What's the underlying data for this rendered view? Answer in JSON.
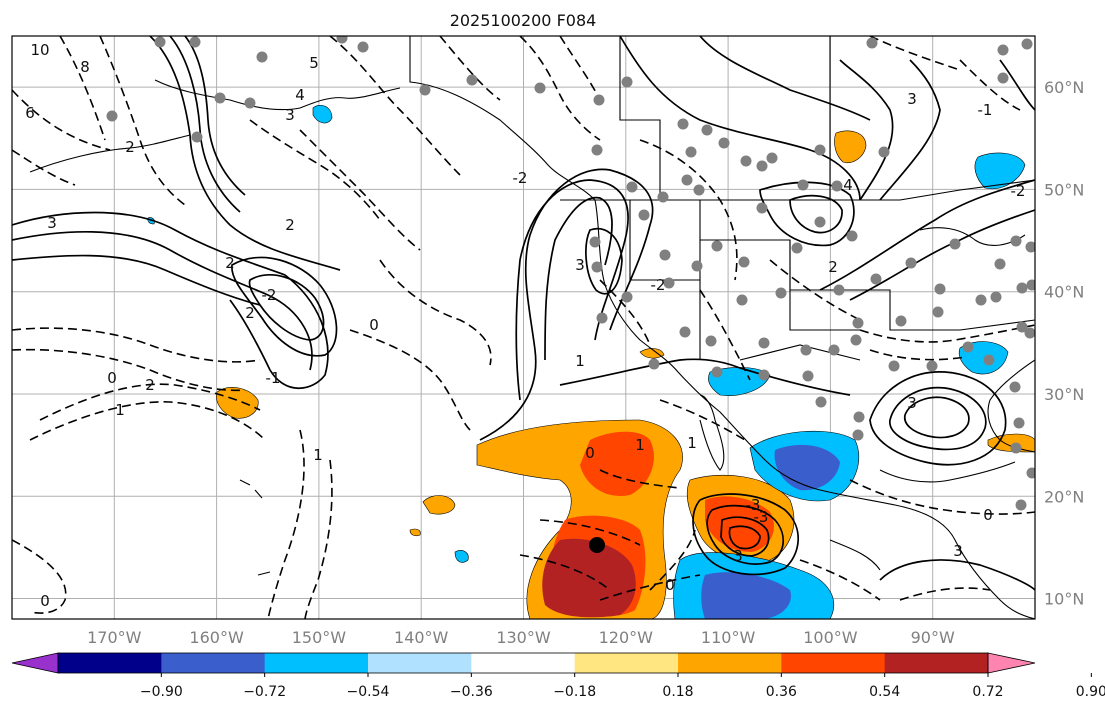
{
  "chart_data": {
    "type": "map",
    "title": "2025100200 F084",
    "lon_ticks": [
      "170°W",
      "160°W",
      "150°W",
      "140°W",
      "130°W",
      "120°W",
      "110°W",
      "100°W",
      "90°W"
    ],
    "lat_ticks": [
      "60°N",
      "50°N",
      "40°N",
      "30°N",
      "20°N",
      "10°N"
    ],
    "lon_range": [
      -180,
      -80
    ],
    "lat_range": [
      8,
      65
    ],
    "gridlines": true,
    "colorbar": {
      "ticks": [
        "−0.90",
        "−0.72",
        "−0.54",
        "−0.36",
        "−0.18",
        "0.18",
        "0.36",
        "0.54",
        "0.72",
        "0.90"
      ],
      "colors": [
        "#9932cc",
        "#00008b",
        "#3a5fcd",
        "#00bfff",
        "#b0e2ff",
        "#ffffff",
        "#ffe680",
        "#ffa500",
        "#ff4500",
        "#b22222",
        "#ff85b0"
      ],
      "extend": "both"
    },
    "contour_labels": [
      "10",
      "8",
      "6",
      "5",
      "4",
      "3",
      "3",
      "2",
      "2",
      "2",
      "2",
      "2",
      "1",
      "1",
      "1",
      "1",
      "0",
      "0",
      "0",
      "0",
      "0",
      "-1",
      "-2",
      "-2",
      "-2",
      "3",
      "3",
      "-3",
      "-3",
      "3",
      "4",
      "3",
      "2",
      "-1",
      "1",
      "-2",
      "0",
      "3"
    ],
    "stations_marked": 1
  }
}
